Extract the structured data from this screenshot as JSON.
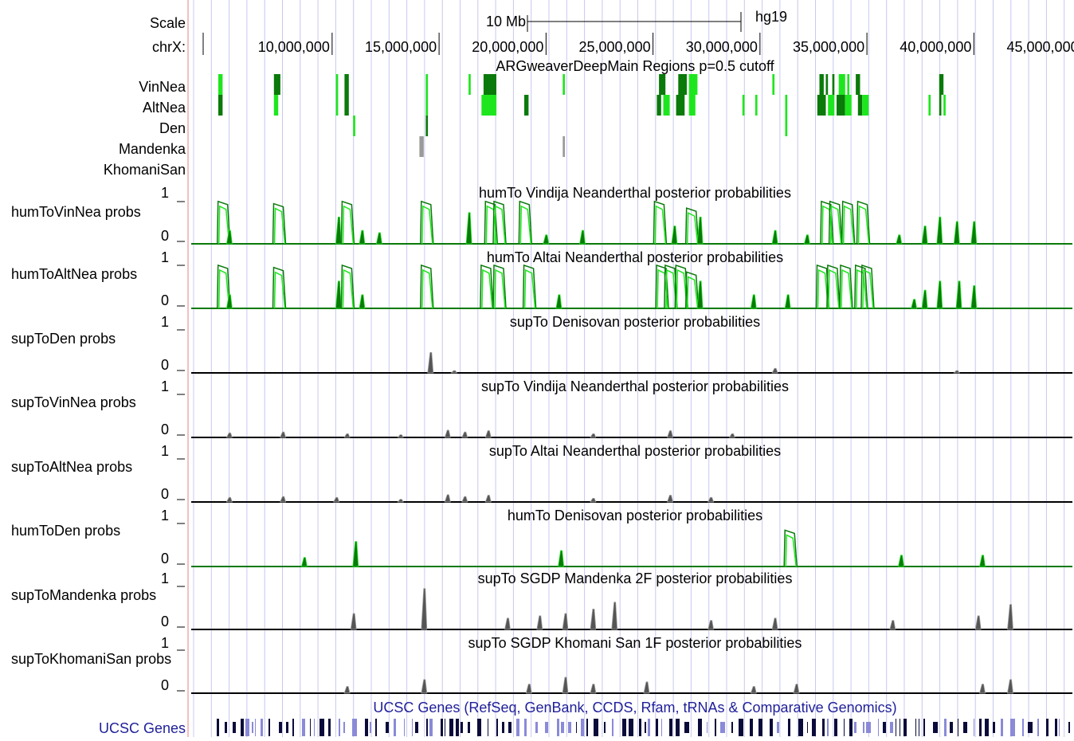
{
  "header": {
    "scale_label": "Scale",
    "scale_bar_label": "10 Mb",
    "assembly": "hg19",
    "chrom_label": "chrX:"
  },
  "ruler_ticks": [
    "10,000,000",
    "15,000,000",
    "20,000,000",
    "25,000,000",
    "30,000,000",
    "35,000,000",
    "40,000,000",
    "45,000,000"
  ],
  "colors": {
    "green_dark": "#0a7a0a",
    "green_light": "#1ee61e",
    "gray": "#555555",
    "gray_light": "#9a9a9a",
    "gene_dark": "#0b0b3b",
    "gene_light": "#8a8ad8",
    "title_blue": "#1f1f9a",
    "gridline": "#c8c8f0",
    "left_border": "#e88080"
  },
  "regions_track": {
    "title": "ARGweaverDeepMain Regions p=0.5 cutoff",
    "rows": [
      {
        "label": "VinNea"
      },
      {
        "label": "AltNea"
      },
      {
        "label": "Den"
      },
      {
        "label": "Mandenka"
      },
      {
        "label": "KhomaniSan"
      }
    ]
  },
  "wiggle_tracks": [
    {
      "key": "humToVinNea",
      "label": "humToVinNea probs",
      "title": "humTo Vindija Neanderthal posterior probabilities",
      "ymax": "1",
      "ymin": "0"
    },
    {
      "key": "humToAltNea",
      "label": "humToAltNea probs",
      "title": "humTo Altai Neanderthal posterior probabilities",
      "ymax": "1",
      "ymin": "0"
    },
    {
      "key": "supToDen",
      "label": "supToDen probs",
      "title": "supTo Denisovan posterior probabilities",
      "ymax": "1",
      "ymin": "0"
    },
    {
      "key": "supToVinNea",
      "label": "supToVinNea probs",
      "title": "supTo Vindija Neanderthal posterior probabilities",
      "ymax": "1",
      "ymin": "0"
    },
    {
      "key": "supToAltNea",
      "label": "supToAltNea probs",
      "title": "supTo Altai Neanderthal posterior probabilities",
      "ymax": "1",
      "ymin": "0"
    },
    {
      "key": "humToDen",
      "label": "humToDen probs",
      "title": "humTo Denisovan posterior probabilities",
      "ymax": "1",
      "ymin": "0"
    },
    {
      "key": "supToMandenka",
      "label": "supToMandenka probs",
      "title": "supTo SGDP Mandenka 2F posterior probabilities",
      "ymax": "1",
      "ymin": "0"
    },
    {
      "key": "supToKhomaniSan",
      "label": "supToKhomaniSan probs",
      "title": "supTo SGDP Khomani San 1F posterior probabilities",
      "ymax": "1",
      "ymin": "0"
    }
  ],
  "genes_track": {
    "title": "UCSC Genes (RefSeq, GenBank, CCDS, Rfam, tRNAs & Comparative Genomics)",
    "label": "UCSC Genes"
  },
  "chart_data": {
    "type": "area",
    "xlabel": "chrX:",
    "x_range_mb": [
      8.6,
      47.2
    ],
    "ylim": [
      0,
      1
    ],
    "scale_bar_mb": 10,
    "regions": {
      "VinNea": [
        [
          9.0,
          9.2,
          "l"
        ],
        [
          11.6,
          11.9,
          "d"
        ],
        [
          14.5,
          14.6,
          "l"
        ],
        [
          14.9,
          15.1,
          "d"
        ],
        [
          18.7,
          18.8,
          "l"
        ],
        [
          20.7,
          20.8,
          "l"
        ],
        [
          21.4,
          22.0,
          "d"
        ],
        [
          25.1,
          25.2,
          "l"
        ],
        [
          29.6,
          29.9,
          "d"
        ],
        [
          30.5,
          30.9,
          "d"
        ],
        [
          31.0,
          31.4,
          "l"
        ],
        [
          34.9,
          35.0,
          "l"
        ],
        [
          37.1,
          37.3,
          "d"
        ],
        [
          37.4,
          37.5,
          "d"
        ],
        [
          37.7,
          37.8,
          "d"
        ],
        [
          38.0,
          38.3,
          "l"
        ],
        [
          38.4,
          38.5,
          "l"
        ],
        [
          38.8,
          39.0,
          "d"
        ],
        [
          42.7,
          42.9,
          "d"
        ]
      ],
      "AltNea": [
        [
          9.0,
          9.2,
          "d"
        ],
        [
          11.6,
          11.8,
          "l"
        ],
        [
          14.5,
          14.6,
          "l"
        ],
        [
          14.9,
          15.1,
          "d"
        ],
        [
          18.7,
          18.8,
          "l"
        ],
        [
          21.3,
          22.0,
          "l"
        ],
        [
          23.3,
          23.5,
          "d"
        ],
        [
          29.5,
          29.7,
          "d"
        ],
        [
          29.8,
          30.1,
          "l"
        ],
        [
          30.4,
          30.8,
          "d"
        ],
        [
          31.0,
          31.3,
          "l"
        ],
        [
          33.5,
          33.6,
          "l"
        ],
        [
          34.1,
          34.2,
          "l"
        ],
        [
          35.5,
          35.6,
          "l"
        ],
        [
          37.0,
          37.4,
          "d"
        ],
        [
          37.5,
          37.8,
          "l"
        ],
        [
          37.9,
          38.3,
          "d"
        ],
        [
          38.3,
          38.6,
          "l"
        ],
        [
          38.9,
          39.1,
          "d"
        ],
        [
          39.1,
          39.4,
          "l"
        ],
        [
          42.2,
          42.3,
          "l"
        ],
        [
          42.7,
          42.8,
          "d"
        ],
        [
          42.9,
          43.0,
          "l"
        ]
      ],
      "Den": [
        [
          15.3,
          15.4,
          "l"
        ],
        [
          18.7,
          18.8,
          "d"
        ],
        [
          35.5,
          35.6,
          "l"
        ]
      ],
      "Mandenka": [
        [
          18.4,
          18.6,
          "g"
        ],
        [
          25.1,
          25.2,
          "g"
        ]
      ],
      "KhomaniSan": []
    },
    "series": [
      {
        "name": "humToVinNea",
        "peaks": [
          [
            9.1,
            0.95
          ],
          [
            9.5,
            0.3
          ],
          [
            11.7,
            0.9
          ],
          [
            14.6,
            0.6
          ],
          [
            14.9,
            0.95
          ],
          [
            15.7,
            0.3
          ],
          [
            16.5,
            0.25
          ],
          [
            18.6,
            0.95
          ],
          [
            20.7,
            0.7
          ],
          [
            21.6,
            0.95
          ],
          [
            22.0,
            0.95
          ],
          [
            23.2,
            0.95
          ],
          [
            24.3,
            0.2
          ],
          [
            26.0,
            0.3
          ],
          [
            29.5,
            0.95
          ],
          [
            30.3,
            0.4
          ],
          [
            31.0,
            0.8
          ],
          [
            31.5,
            0.6
          ],
          [
            35.0,
            0.3
          ],
          [
            36.5,
            0.2
          ],
          [
            37.3,
            0.95
          ],
          [
            37.7,
            0.95
          ],
          [
            38.3,
            0.95
          ],
          [
            39.0,
            0.95
          ],
          [
            40.8,
            0.2
          ],
          [
            42.0,
            0.4
          ],
          [
            42.7,
            0.6
          ],
          [
            43.5,
            0.5
          ],
          [
            44.3,
            0.5
          ]
        ]
      },
      {
        "name": "humToAltNea",
        "peaks": [
          [
            9.1,
            0.95
          ],
          [
            9.5,
            0.3
          ],
          [
            11.7,
            0.9
          ],
          [
            14.6,
            0.6
          ],
          [
            14.9,
            0.95
          ],
          [
            15.7,
            0.3
          ],
          [
            18.6,
            0.95
          ],
          [
            21.4,
            0.95
          ],
          [
            22.0,
            0.95
          ],
          [
            23.4,
            0.95
          ],
          [
            24.9,
            0.3
          ],
          [
            29.6,
            0.95
          ],
          [
            30.0,
            0.95
          ],
          [
            30.5,
            0.95
          ],
          [
            31.0,
            0.8
          ],
          [
            31.5,
            0.6
          ],
          [
            34.0,
            0.3
          ],
          [
            35.6,
            0.3
          ],
          [
            37.1,
            0.95
          ],
          [
            37.6,
            0.95
          ],
          [
            38.2,
            0.95
          ],
          [
            38.9,
            0.95
          ],
          [
            39.2,
            0.95
          ],
          [
            41.5,
            0.2
          ],
          [
            42.0,
            0.4
          ],
          [
            42.7,
            0.6
          ],
          [
            43.6,
            0.6
          ],
          [
            44.3,
            0.5
          ]
        ]
      },
      {
        "name": "supToDen",
        "peaks": [
          [
            18.9,
            0.45
          ],
          [
            20.0,
            0.05
          ],
          [
            35.0,
            0.1
          ],
          [
            43.5,
            0.05
          ]
        ]
      },
      {
        "name": "supToVinNea",
        "peaks": [
          [
            9.5,
            0.1
          ],
          [
            12.0,
            0.12
          ],
          [
            15.0,
            0.08
          ],
          [
            17.5,
            0.06
          ],
          [
            19.7,
            0.16
          ],
          [
            20.5,
            0.12
          ],
          [
            21.6,
            0.15
          ],
          [
            26.5,
            0.08
          ],
          [
            30.1,
            0.15
          ],
          [
            33.0,
            0.08
          ]
        ]
      },
      {
        "name": "supToAltNea",
        "peaks": [
          [
            9.5,
            0.1
          ],
          [
            12.0,
            0.12
          ],
          [
            14.5,
            0.1
          ],
          [
            17.5,
            0.06
          ],
          [
            19.7,
            0.16
          ],
          [
            20.5,
            0.12
          ],
          [
            21.6,
            0.15
          ],
          [
            26.5,
            0.08
          ],
          [
            30.1,
            0.15
          ],
          [
            32.0,
            0.1
          ]
        ]
      },
      {
        "name": "humToDen",
        "peaks": [
          [
            13.0,
            0.2
          ],
          [
            15.4,
            0.55
          ],
          [
            25.0,
            0.35
          ],
          [
            35.6,
            0.8
          ],
          [
            40.9,
            0.25
          ],
          [
            44.7,
            0.25
          ]
        ]
      },
      {
        "name": "supToMandenka",
        "peaks": [
          [
            15.3,
            0.35
          ],
          [
            18.6,
            0.9
          ],
          [
            22.5,
            0.25
          ],
          [
            24.0,
            0.3
          ],
          [
            25.2,
            0.35
          ],
          [
            26.5,
            0.45
          ],
          [
            27.5,
            0.6
          ],
          [
            32.0,
            0.2
          ],
          [
            35.0,
            0.25
          ],
          [
            40.5,
            0.2
          ],
          [
            44.5,
            0.3
          ],
          [
            46.0,
            0.55
          ]
        ]
      },
      {
        "name": "supToKhomaniSan",
        "peaks": [
          [
            15.0,
            0.15
          ],
          [
            18.6,
            0.3
          ],
          [
            23.5,
            0.2
          ],
          [
            25.2,
            0.35
          ],
          [
            26.5,
            0.2
          ],
          [
            29.0,
            0.25
          ],
          [
            34.0,
            0.15
          ],
          [
            36.0,
            0.2
          ],
          [
            44.7,
            0.2
          ],
          [
            46.0,
            0.3
          ]
        ]
      }
    ]
  }
}
